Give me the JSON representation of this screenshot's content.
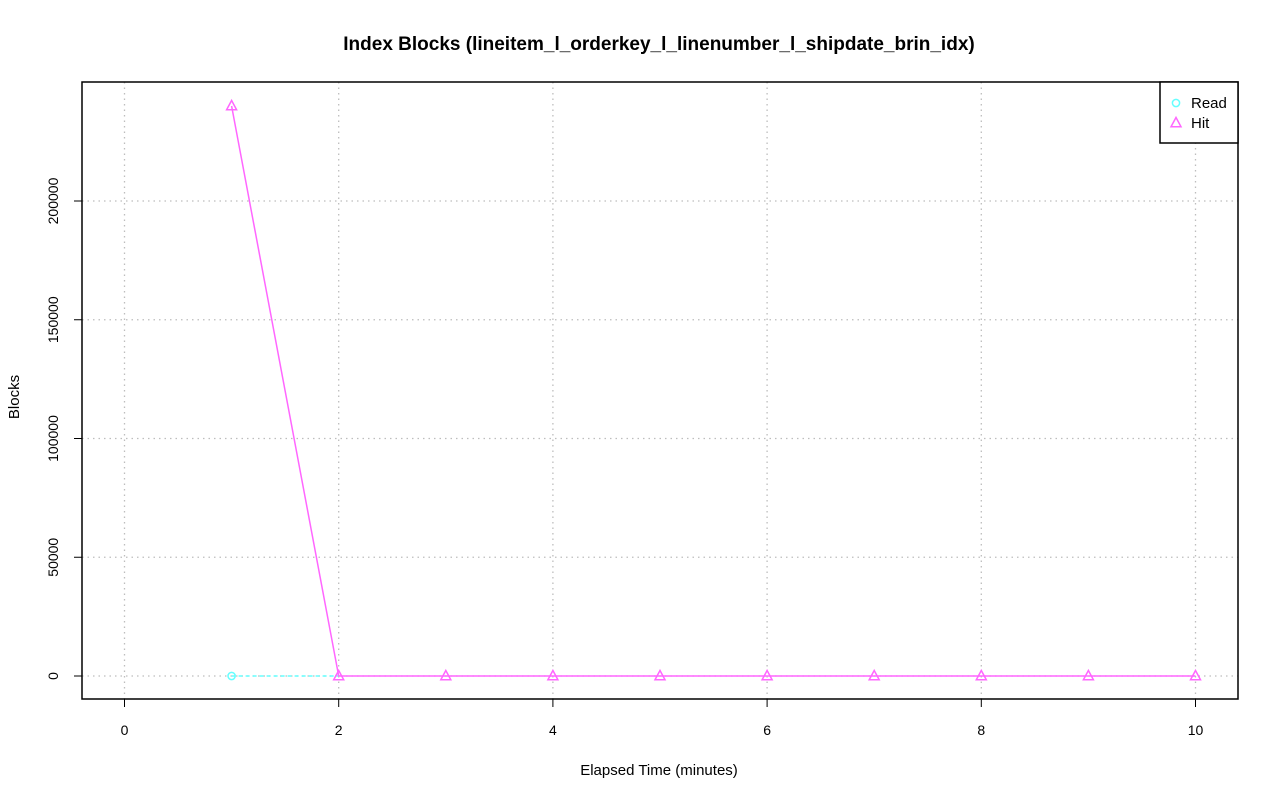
{
  "chart_data": {
    "type": "line",
    "title": "Index Blocks (lineitem_l_orderkey_l_linenumber_l_shipdate_brin_idx)",
    "xlabel": "Elapsed Time (minutes)",
    "ylabel": "Blocks",
    "xlim": [
      0,
      10
    ],
    "ylim": [
      0,
      240000
    ],
    "xticks": [
      0,
      2,
      4,
      6,
      8,
      10
    ],
    "yticks": [
      0,
      50000,
      100000,
      150000,
      200000
    ],
    "grid": true,
    "legend_position": "top-right",
    "series": [
      {
        "name": "Read",
        "color": "#66ffff",
        "marker": "circle",
        "line_style": "dashed",
        "x": [
          1
        ],
        "y": [
          0
        ]
      },
      {
        "name": "Hit",
        "color": "#ff66ff",
        "marker": "triangle",
        "line_style": "solid",
        "x": [
          1,
          2,
          3,
          4,
          5,
          6,
          7,
          8,
          9,
          10
        ],
        "y": [
          240000,
          0,
          0,
          0,
          0,
          0,
          0,
          0,
          0,
          0
        ]
      }
    ]
  }
}
